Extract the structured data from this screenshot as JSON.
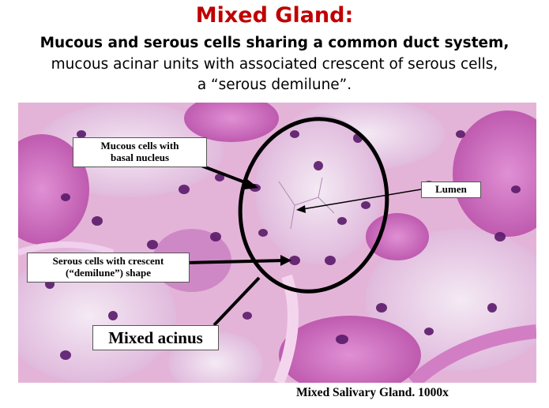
{
  "slide": {
    "title": "Mixed Gland:",
    "subtitle_bold": "Mucous and serous cells sharing a common duct system,",
    "subtitle_line2": "mucous acinar units with associated  crescent of serous cells,",
    "subtitle_line3": "a “serous demilune”."
  },
  "micrograph": {
    "labels": {
      "mucous_line1": "Mucous cells with",
      "mucous_line2": "basal nucleus",
      "lumen": "Lumen",
      "serous_line1": "Serous cells with crescent",
      "serous_line2": "(“demilune”) shape",
      "acinus": "Mixed acinus"
    },
    "caption": "Mixed Salivary Gland. 1000x",
    "colors": {
      "tissue_background": "#e8b8dc",
      "mucous_pale": "#efe0f0",
      "serous_pink": "#d070c0",
      "nucleus": "#5a1a6a",
      "annotation": "#000000"
    }
  }
}
